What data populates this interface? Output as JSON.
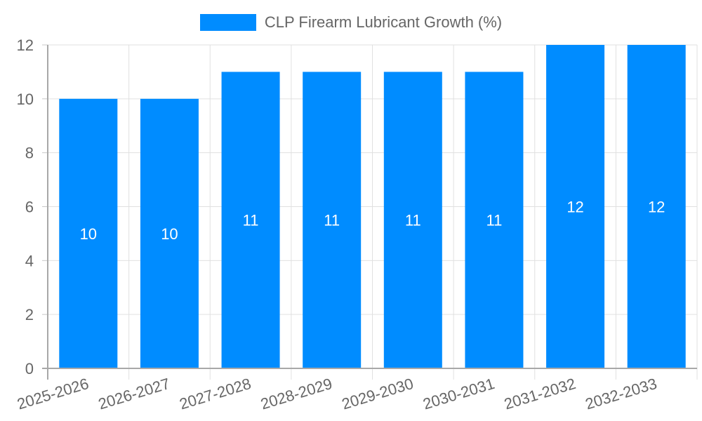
{
  "chart_data": {
    "type": "bar",
    "title": "",
    "legend": [
      "CLP Firearm Lubricant Growth (%)"
    ],
    "legend_position": "top",
    "categories": [
      "2025-2026",
      "2026-2027",
      "2027-2028",
      "2028-2029",
      "2029-2030",
      "2030-2031",
      "2031-2032",
      "2032-2033"
    ],
    "series": [
      {
        "name": "CLP Firearm Lubricant Growth (%)",
        "values": [
          10,
          10,
          11,
          11,
          11,
          11,
          12,
          12
        ],
        "color": "#008cff"
      }
    ],
    "xlabel": "",
    "ylabel": "",
    "ylim": [
      0,
      12
    ],
    "yticks": [
      0,
      2,
      4,
      6,
      8,
      10,
      12
    ],
    "grid": true,
    "data_labels": true
  },
  "legend": {
    "label": "CLP Firearm Lubricant Growth (%)",
    "color": "#008cff"
  }
}
